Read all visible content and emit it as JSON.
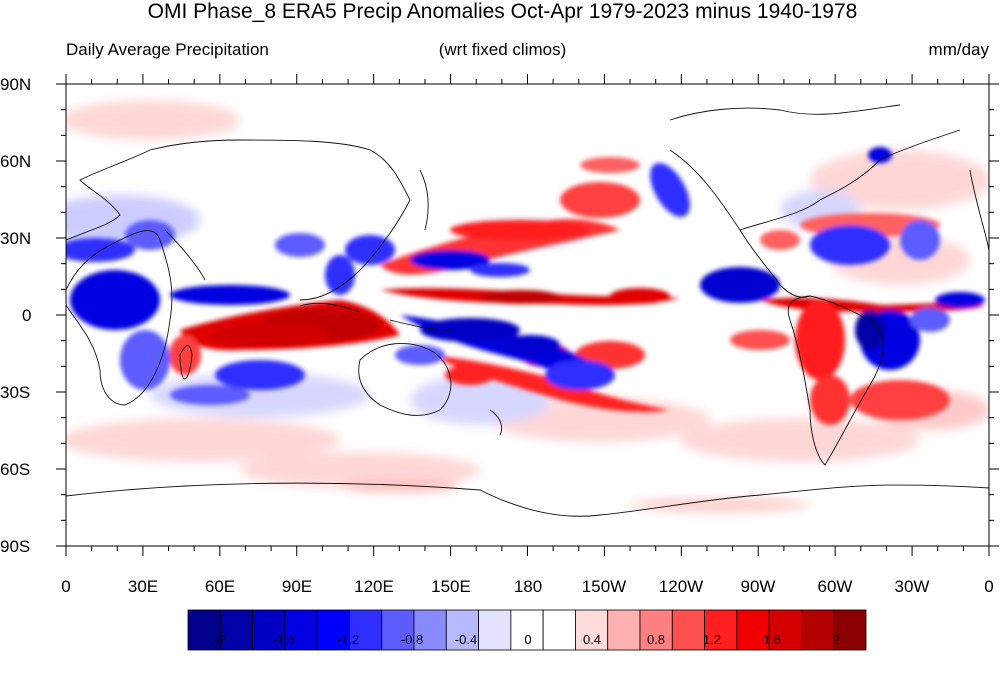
{
  "title": "OMI Phase_8 ERA5 Precip Anomalies Oct-Apr 1979-2023 minus 1940-1978",
  "subtitle_left": "Daily Average Precipitation",
  "subtitle_center": "(wrt fixed climos)",
  "subtitle_right": "mm/day",
  "lat_labels": [
    "90N",
    "60N",
    "30N",
    "0",
    "30S",
    "60S",
    "90S"
  ],
  "lon_labels": [
    "0",
    "30E",
    "60E",
    "90E",
    "120E",
    "150E",
    "180",
    "150W",
    "120W",
    "90W",
    "60W",
    "30W",
    "0"
  ],
  "colorbar": {
    "levels": [
      -2,
      -1.8,
      -1.6,
      -1.4,
      -1.2,
      -1,
      -0.8,
      -0.6,
      -0.4,
      -0.2,
      0,
      0.2,
      0.4,
      0.6,
      0.8,
      1,
      1.2,
      1.4,
      1.6,
      1.8,
      2
    ],
    "colors": [
      "#00008b",
      "#0000a8",
      "#0000c4",
      "#0000e0",
      "#0000ff",
      "#2e2eff",
      "#5c5cff",
      "#8a8aff",
      "#b8b8ff",
      "#e3e3ff",
      "#ffffff",
      "#ffffff",
      "#ffdcdc",
      "#ffb0b0",
      "#ff8080",
      "#ff4f4f",
      "#ff1f1f",
      "#f00000",
      "#d40000",
      "#b30000",
      "#8b0000"
    ],
    "tick_labels": [
      "-2",
      "-1.6",
      "-1.2",
      "-0.8",
      "-0.4",
      "0",
      "0.4",
      "0.8",
      "1.2",
      "1.6",
      "2"
    ]
  }
}
